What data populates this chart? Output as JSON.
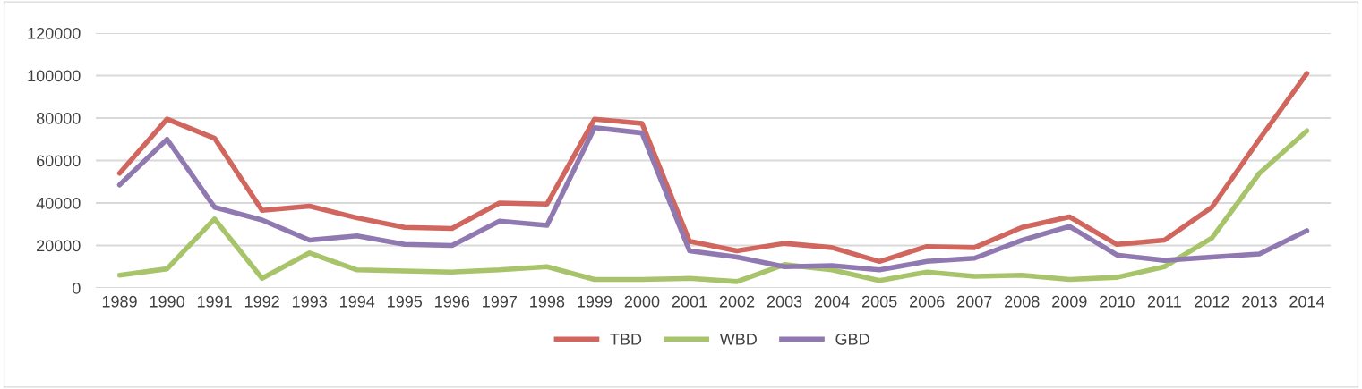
{
  "chart_data": {
    "type": "line",
    "categories": [
      "1989",
      "1990",
      "1991",
      "1992",
      "1993",
      "1994",
      "1995",
      "1996",
      "1997",
      "1998",
      "1999",
      "2000",
      "2001",
      "2002",
      "2003",
      "2004",
      "2005",
      "2006",
      "2007",
      "2008",
      "2009",
      "2010",
      "2011",
      "2012",
      "2013",
      "2014"
    ],
    "series": [
      {
        "name": "TBD",
        "color": "#d0665e",
        "values": [
          54000,
          79500,
          70500,
          36500,
          38500,
          33000,
          28500,
          28000,
          40000,
          39500,
          79500,
          77500,
          22000,
          17500,
          21000,
          19000,
          12500,
          19500,
          19000,
          28500,
          33500,
          20500,
          22500,
          38000,
          70000,
          101000
        ]
      },
      {
        "name": "WBD",
        "color": "#a7c46a",
        "values": [
          6000,
          9000,
          32500,
          4500,
          16500,
          8500,
          8000,
          7500,
          8500,
          10000,
          4000,
          4000,
          4500,
          3000,
          11000,
          8500,
          3500,
          7500,
          5500,
          6000,
          4000,
          5000,
          10000,
          23500,
          54000,
          74000
        ]
      },
      {
        "name": "GBD",
        "color": "#9079b1",
        "values": [
          48500,
          70000,
          38000,
          32000,
          22500,
          24500,
          20500,
          20000,
          31500,
          29500,
          75500,
          73000,
          17500,
          14500,
          10000,
          10500,
          8500,
          12500,
          14000,
          22500,
          29000,
          15500,
          13000,
          14500,
          16000,
          27000
        ]
      }
    ],
    "ylim": [
      0,
      120000
    ],
    "yticks": [
      0,
      20000,
      40000,
      60000,
      80000,
      100000,
      120000
    ],
    "grid": "y",
    "legend": "bottom",
    "marker": "none",
    "line_style": "solid"
  }
}
